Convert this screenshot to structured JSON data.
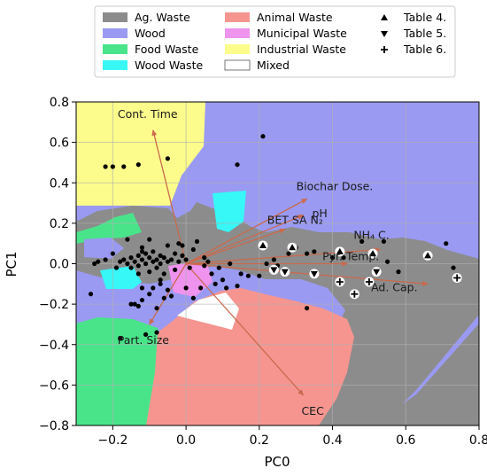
{
  "chart_data": {
    "type": "scatter",
    "xlabel": "PC0",
    "ylabel": "PC1",
    "xlim": [
      -0.3,
      0.8
    ],
    "ylim": [
      -0.8,
      0.8
    ],
    "xticks": [
      "−0.2",
      "0.0",
      "0.2",
      "0.4",
      "0.6",
      "0.8"
    ],
    "xtick_values": [
      -0.2,
      0.0,
      0.2,
      0.4,
      0.6,
      0.8
    ],
    "yticks": [
      "−0.8",
      "−0.6",
      "−0.4",
      "−0.2",
      "0.0",
      "0.2",
      "0.4",
      "0.6",
      "0.8"
    ],
    "ytick_values": [
      -0.8,
      -0.6,
      -0.4,
      -0.2,
      0.0,
      0.2,
      0.4,
      0.6,
      0.8
    ],
    "grid": true,
    "legend_placement": "top",
    "region_classes": [
      {
        "name": "Ag. Waste",
        "color": "#8c8c8c"
      },
      {
        "name": "Wood",
        "color": "#9a9af2"
      },
      {
        "name": "Food Waste",
        "color": "#49e48a"
      },
      {
        "name": "Wood Waste",
        "color": "#37f7f7"
      },
      {
        "name": "Animal Waste",
        "color": "#f69590"
      },
      {
        "name": "Municipal Waste",
        "color": "#ee93ee"
      },
      {
        "name": "Industrial Waste",
        "color": "#fcfc8c"
      },
      {
        "name": "Mixed",
        "color": "#ffffff"
      }
    ],
    "marker_series": [
      {
        "name": "Table 4.",
        "marker": "triangle-up"
      },
      {
        "name": "Table 5.",
        "marker": "triangle-down"
      },
      {
        "name": "Table 6.",
        "marker": "plus"
      }
    ],
    "loadings": [
      {
        "name": "Cont. Time",
        "x": -0.09,
        "y": 0.66
      },
      {
        "name": "Biochar Dose.",
        "x": 0.33,
        "y": 0.32
      },
      {
        "name": "pH",
        "x": 0.32,
        "y": 0.24
      },
      {
        "name": "BET SA N₂",
        "x": 0.27,
        "y": 0.17
      },
      {
        "name": "NH₄ C.",
        "x": 0.53,
        "y": 0.07
      },
      {
        "name": "Pyr. Temp.",
        "x": 0.44,
        "y": 0.0
      },
      {
        "name": "Ad. Cap.",
        "x": 0.66,
        "y": -0.1
      },
      {
        "name": "CEC",
        "x": 0.32,
        "y": -0.65
      },
      {
        "name": "Part. Size",
        "x": -0.1,
        "y": -0.3
      }
    ],
    "points": [
      [
        -0.22,
        0.48
      ],
      [
        -0.2,
        0.48
      ],
      [
        -0.17,
        0.48
      ],
      [
        -0.13,
        0.49
      ],
      [
        -0.05,
        0.52
      ],
      [
        0.21,
        0.63
      ],
      [
        0.14,
        0.49
      ],
      [
        -0.26,
        -0.15
      ],
      [
        -0.25,
        0.0
      ],
      [
        -0.24,
        0.01
      ],
      [
        -0.22,
        0.02
      ],
      [
        -0.2,
        0.05
      ],
      [
        -0.18,
        0.01
      ],
      [
        -0.17,
        0.02
      ],
      [
        -0.16,
        0.0
      ],
      [
        -0.15,
        0.03
      ],
      [
        -0.15,
        -0.02
      ],
      [
        -0.14,
        0.01
      ],
      [
        -0.13,
        0.04
      ],
      [
        -0.13,
        -0.01
      ],
      [
        -0.12,
        0.02
      ],
      [
        -0.12,
        0.08
      ],
      [
        -0.11,
        0.0
      ],
      [
        -0.11,
        0.05
      ],
      [
        -0.1,
        0.03
      ],
      [
        -0.1,
        -0.04
      ],
      [
        -0.09,
        0.01
      ],
      [
        -0.09,
        0.06
      ],
      [
        -0.08,
        0.02
      ],
      [
        -0.08,
        -0.02
      ],
      [
        -0.07,
        0.04
      ],
      [
        -0.07,
        0.0
      ],
      [
        -0.06,
        0.03
      ],
      [
        -0.06,
        -0.05
      ],
      [
        -0.05,
        0.01
      ],
      [
        -0.05,
        0.09
      ],
      [
        -0.04,
        0.02
      ],
      [
        -0.03,
        0.05
      ],
      [
        -0.03,
        -0.03
      ],
      [
        -0.02,
        0.01
      ],
      [
        -0.02,
        0.1
      ],
      [
        -0.01,
        0.04
      ],
      [
        0.0,
        0.02
      ],
      [
        0.01,
        -0.02
      ],
      [
        0.02,
        0.07
      ],
      [
        0.03,
        0.11
      ],
      [
        0.05,
        -0.01
      ],
      [
        0.06,
        0.01
      ],
      [
        0.07,
        -0.05
      ],
      [
        0.08,
        -0.1
      ],
      [
        0.1,
        -0.08
      ],
      [
        0.11,
        -0.12
      ],
      [
        0.12,
        0.0
      ],
      [
        0.15,
        -0.05
      ],
      [
        0.17,
        -0.06
      ],
      [
        0.2,
        -0.06
      ],
      [
        0.22,
        0.0
      ],
      [
        0.24,
        0.02
      ],
      [
        0.25,
        -0.01
      ],
      [
        0.28,
        0.05
      ],
      [
        0.3,
        0.08
      ],
      [
        0.33,
        0.05
      ],
      [
        0.35,
        0.06
      ],
      [
        0.4,
        0.03
      ],
      [
        0.43,
        0.03
      ],
      [
        0.48,
        0.11
      ],
      [
        0.54,
        0.11
      ],
      [
        0.55,
        0.01
      ],
      [
        0.58,
        -0.04
      ],
      [
        0.71,
        0.1
      ],
      [
        0.73,
        -0.02
      ],
      [
        -0.18,
        -0.37
      ],
      [
        -0.15,
        -0.2
      ],
      [
        -0.14,
        -0.2
      ],
      [
        -0.13,
        -0.21
      ],
      [
        -0.12,
        -0.18
      ],
      [
        -0.11,
        -0.35
      ],
      [
        -0.1,
        -0.15
      ],
      [
        -0.09,
        -0.12
      ],
      [
        -0.08,
        -0.22
      ],
      [
        -0.07,
        -0.1
      ],
      [
        -0.06,
        -0.17
      ],
      [
        -0.05,
        -0.13
      ],
      [
        -0.04,
        -0.16
      ],
      [
        -0.08,
        -0.34
      ],
      [
        -0.12,
        -0.12
      ],
      [
        0.0,
        -0.12
      ],
      [
        0.02,
        -0.17
      ],
      [
        0.04,
        -0.12
      ],
      [
        0.09,
        -0.02
      ],
      [
        0.14,
        -0.11
      ],
      [
        0.33,
        -0.22
      ],
      [
        -0.12,
        0.06
      ],
      [
        -0.01,
        0.09
      ],
      [
        -0.16,
        0.12
      ],
      [
        -0.1,
        0.12
      ],
      [
        -0.13,
        -0.05
      ],
      [
        -0.19,
        -0.02
      ],
      [
        -0.07,
        -0.08
      ],
      [
        0.05,
        0.03
      ]
    ],
    "table4_points": [
      [
        0.21,
        0.09
      ],
      [
        0.29,
        0.08
      ],
      [
        0.42,
        0.06
      ],
      [
        0.51,
        0.05
      ],
      [
        0.66,
        0.04
      ]
    ],
    "table5_points": [
      [
        0.24,
        -0.03
      ],
      [
        0.27,
        -0.04
      ],
      [
        0.35,
        -0.05
      ],
      [
        0.52,
        -0.04
      ]
    ],
    "table6_points": [
      [
        0.42,
        -0.09
      ],
      [
        0.46,
        -0.15
      ],
      [
        0.5,
        -0.09
      ],
      [
        0.74,
        -0.07
      ]
    ]
  }
}
